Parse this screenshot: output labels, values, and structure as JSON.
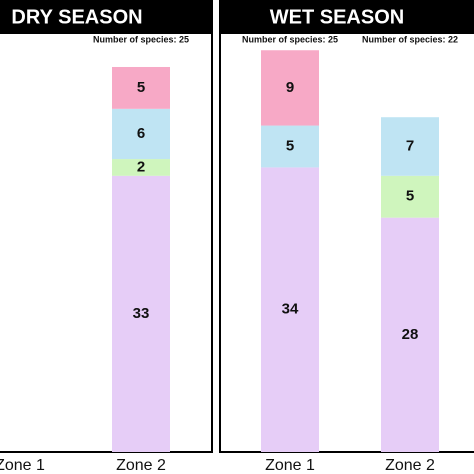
{
  "chart_data": [
    {
      "type": "bar",
      "stacked": true,
      "title": "DRY SEASON",
      "categories": [
        "Zone 1",
        "Zone 2"
      ],
      "annotations": [
        null,
        "Number of species: 25"
      ],
      "series": [
        {
          "color": "#e6cdf7",
          "values": [
            null,
            33
          ]
        },
        {
          "color": "#cff5bd",
          "values": [
            null,
            2
          ]
        },
        {
          "color": "#bfe4f3",
          "values": [
            null,
            6
          ]
        },
        {
          "color": "#f7a9c6",
          "values": [
            null,
            5
          ]
        }
      ]
    },
    {
      "type": "bar",
      "stacked": true,
      "title": "WET SEASON",
      "categories": [
        "Zone 1",
        "Zone 2"
      ],
      "annotations": [
        "Number of species: 25",
        "Number of species: 22"
      ],
      "series": [
        {
          "color": "#e6cdf7",
          "values": [
            34,
            28
          ]
        },
        {
          "color": "#cff5bd",
          "values": [
            null,
            5
          ]
        },
        {
          "color": "#bfe4f3",
          "values": [
            5,
            7
          ]
        },
        {
          "color": "#f7a9c6",
          "values": [
            9,
            null
          ]
        }
      ]
    }
  ]
}
